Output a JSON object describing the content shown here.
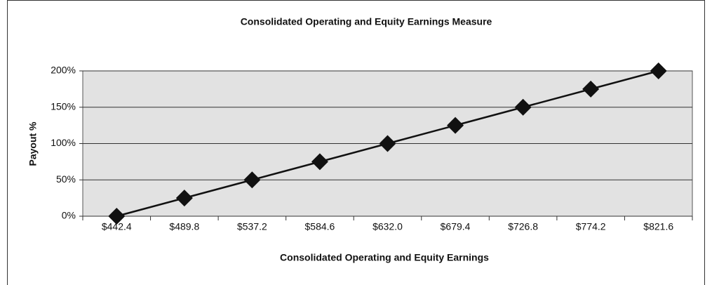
{
  "chart_data": {
    "type": "line",
    "title": "Consolidated Operating and Equity Earnings Measure",
    "x_label": "Consolidated Operating and Equity Earnings",
    "y_label": "Payout %",
    "categories": [
      "$442.4",
      "$489.8",
      "$537.2",
      "$584.6",
      "$632.0",
      "$679.4",
      "$726.8",
      "$774.2",
      "$821.6"
    ],
    "values": [
      0,
      25,
      50,
      75,
      100,
      125,
      150,
      175,
      200
    ],
    "color": "#111111",
    "ylim": [
      0,
      200
    ],
    "yticks": [
      {
        "value": 0,
        "label": "0%"
      },
      {
        "value": 50,
        "label": "50%"
      },
      {
        "value": 100,
        "label": "100%"
      },
      {
        "value": 150,
        "label": "150%"
      },
      {
        "value": 200,
        "label": "200%"
      }
    ],
    "grid": true
  }
}
